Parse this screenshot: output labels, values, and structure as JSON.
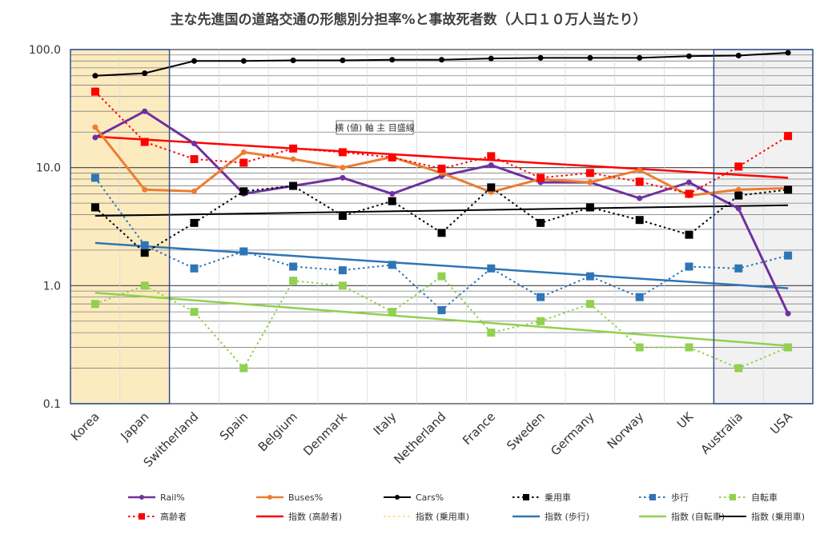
{
  "chart_data": {
    "type": "line",
    "title": "主な先進国の道路交通の形態別分担率%と事故死者数（人口１０万人当たり）",
    "yscale": "log",
    "ylim": [
      0.1,
      100
    ],
    "yticks": [
      "100.0",
      "10.0",
      "1.0",
      "0.1"
    ],
    "categories": [
      "Korea",
      "Japan",
      "Switherland",
      "Spain",
      "Belgium",
      "Denmark",
      "Italy",
      "Netherland",
      "France",
      "Sweden",
      "Germany",
      "Norway",
      "UK",
      "Australia",
      "USA"
    ],
    "highlight_groups": [
      {
        "name": "asia",
        "from": "Korea",
        "to": "Japan",
        "fill": "#fdebc0",
        "stroke": "#2f4f8f"
      },
      {
        "name": "new-world",
        "from": "Australia",
        "to": "USA",
        "fill": "#f1f1f1",
        "stroke": "#2f4f8f"
      }
    ],
    "series": [
      {
        "name": "Rail%",
        "color": "#7030a0",
        "dash": "solid",
        "marker": "circle",
        "markerSize": 3.5,
        "width": 3,
        "values": [
          18,
          30,
          16,
          6,
          7,
          8.2,
          6,
          8.5,
          10.5,
          7.5,
          7.5,
          5.5,
          7.5,
          4.5,
          0.58
        ]
      },
      {
        "name": "Buses%",
        "color": "#ed7d31",
        "dash": "solid",
        "marker": "circle",
        "markerSize": 3.5,
        "width": 3,
        "values": [
          22,
          6.5,
          6.3,
          13.5,
          11.8,
          10,
          12.3,
          9,
          6.2,
          8,
          7.5,
          9.5,
          5.8,
          6.5,
          6.7
        ]
      },
      {
        "name": "Cars%",
        "color": "#000000",
        "dash": "solid",
        "marker": "circle",
        "markerSize": 3.5,
        "width": 2,
        "values": [
          60,
          63,
          80,
          80,
          81,
          81,
          82,
          82,
          84,
          85,
          85,
          85,
          88,
          89,
          94
        ]
      },
      {
        "name": "乗用車",
        "color": "#000000",
        "dash": "dot",
        "marker": "square",
        "markerSize": 5,
        "width": 2,
        "values": [
          4.6,
          1.9,
          3.4,
          6.3,
          7,
          3.9,
          5.2,
          2.8,
          6.8,
          3.4,
          4.6,
          3.6,
          2.7,
          5.8,
          6.5
        ]
      },
      {
        "name": "歩行",
        "color": "#2e75b6",
        "dash": "dot",
        "marker": "square",
        "markerSize": 5,
        "width": 2,
        "values": [
          8.2,
          2.2,
          1.4,
          1.95,
          1.45,
          1.35,
          1.5,
          0.62,
          1.4,
          0.8,
          1.2,
          0.8,
          1.45,
          1.4,
          1.8
        ]
      },
      {
        "name": "自転車",
        "color": "#92d050",
        "dash": "dot",
        "marker": "square",
        "markerSize": 5,
        "width": 2,
        "values": [
          0.7,
          1,
          0.6,
          0.2,
          1.1,
          1,
          0.6,
          1.2,
          0.4,
          0.5,
          0.7,
          0.3,
          0.3,
          0.2,
          0.3
        ]
      },
      {
        "name": "高齢者",
        "color": "#ff0000",
        "dash": "dot",
        "marker": "square",
        "markerSize": 5,
        "width": 2,
        "values": [
          44,
          16.5,
          11.8,
          11,
          14.5,
          13.5,
          12.2,
          9.8,
          12.5,
          8.2,
          9,
          7.6,
          6,
          10.2,
          18.5
        ]
      }
    ],
    "trendlines": [
      {
        "name": "指数 (高齢者)",
        "color": "#ff0000",
        "dash": "solid",
        "width": 2.5,
        "from": 18.3,
        "to": 8.2,
        "show": true
      },
      {
        "name": "指数 (乗用車)",
        "color": "#ffc000",
        "dash": "dot",
        "width": 1,
        "from": 3.9,
        "to": 4.8,
        "show": false
      },
      {
        "name": "指数 (歩行)",
        "color": "#2e75b6",
        "dash": "solid",
        "width": 2.5,
        "from": 2.3,
        "to": 0.95,
        "show": true
      },
      {
        "name": "指数 (自転車)",
        "color": "#92d050",
        "dash": "solid",
        "width": 2.5,
        "from": 0.87,
        "to": 0.31,
        "show": true
      },
      {
        "name": "指数 (乗用車)",
        "color": "#000000",
        "dash": "solid",
        "width": 2,
        "from": 3.9,
        "to": 4.8,
        "show": true
      }
    ],
    "tooltip": {
      "label": "横 (値) 軸 主 目盛線",
      "at": "Denmark"
    },
    "legend": {
      "position": "bottom",
      "rows": 2
    }
  }
}
